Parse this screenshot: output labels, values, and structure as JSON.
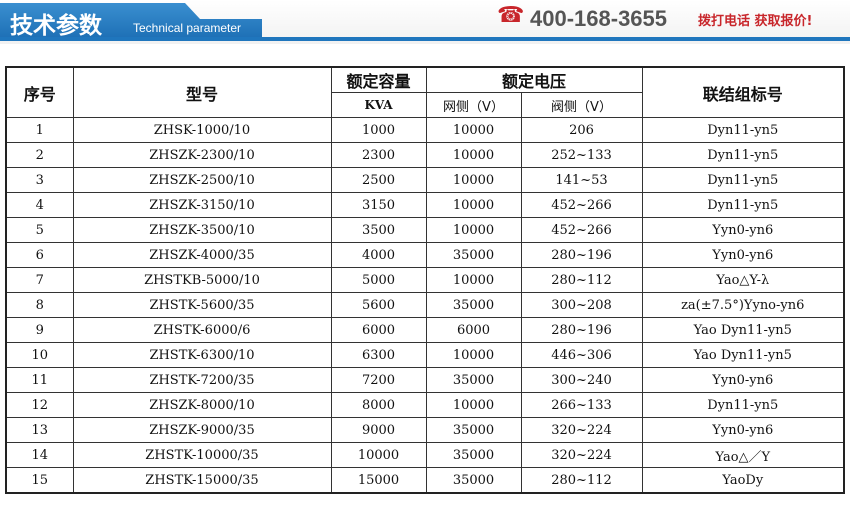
{
  "header": {
    "title": "技术参数",
    "subtitle": "Technical parameter",
    "phone": "400-168-3655",
    "cta": "拨打电话 获取报价!",
    "accent": "#1f76bd",
    "phone_color": "#c8262b"
  },
  "table": {
    "headers": {
      "no": "序号",
      "model": "型号",
      "capacity": "额定容量",
      "voltage": "额定电压",
      "connection": "联结组标号",
      "capacity_unit": "KVA",
      "grid_side": "网侧（V）",
      "valve_side": "阀侧（V）"
    },
    "rows": [
      [
        "1",
        "ZHSK-1000/10",
        "1000",
        "10000",
        "206",
        "Dyn11-yn5"
      ],
      [
        "2",
        "ZHSZK-2300/10",
        "2300",
        "10000",
        "252~133",
        "Dyn11-yn5"
      ],
      [
        "3",
        "ZHSZK-2500/10",
        "2500",
        "10000",
        "141~53",
        "Dyn11-yn5"
      ],
      [
        "4",
        "ZHSZK-3150/10",
        "3150",
        "10000",
        "452~266",
        "Dyn11-yn5"
      ],
      [
        "5",
        "ZHSZK-3500/10",
        "3500",
        "10000",
        "452~266",
        "Yyn0-yn6"
      ],
      [
        "6",
        "ZHSZK-4000/35",
        "4000",
        "35000",
        "280~196",
        "Yyn0-yn6"
      ],
      [
        "7",
        "ZHSTKB-5000/10",
        "5000",
        "10000",
        "280~112",
        "Yao△Y-λ"
      ],
      [
        "8",
        "ZHSTK-5600/35",
        "5600",
        "35000",
        "300~208",
        "za(±7.5°)Yyno-yn6"
      ],
      [
        "9",
        "ZHSTK-6000/6",
        "6000",
        "6000",
        "280~196",
        "Yao Dyn11-yn5"
      ],
      [
        "10",
        "ZHSTK-6300/10",
        "6300",
        "10000",
        "446~306",
        "Yao Dyn11-yn5"
      ],
      [
        "11",
        "ZHSTK-7200/35",
        "7200",
        "35000",
        "300~240",
        "Yyn0-yn6"
      ],
      [
        "12",
        "ZHSZK-8000/10",
        "8000",
        "10000",
        "266~133",
        "Dyn11-yn5"
      ],
      [
        "13",
        "ZHSZK-9000/35",
        "9000",
        "35000",
        "320~224",
        "Yyn0-yn6"
      ],
      [
        "14",
        "ZHSTK-10000/35",
        "10000",
        "35000",
        "320~224",
        "Yao△／Y"
      ],
      [
        "15",
        "ZHSTK-15000/35",
        "15000",
        "35000",
        "280~112",
        "YaoDy"
      ]
    ]
  }
}
